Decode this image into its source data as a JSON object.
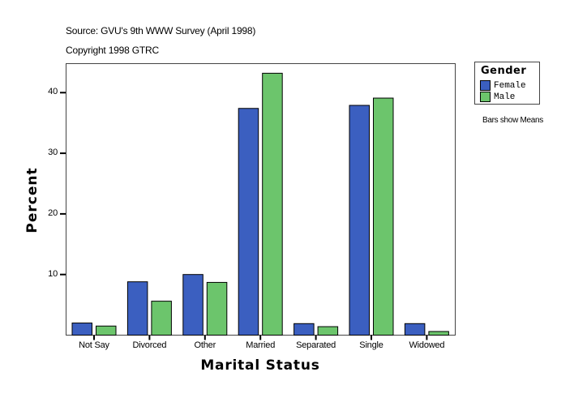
{
  "header": {
    "source": "Source: GVU's 9th WWW Survey (April 1998)",
    "copyright": "Copyright 1998 GTRC"
  },
  "legend": {
    "title": "Gender",
    "items": [
      {
        "label": "Female",
        "color": "#3b5fc0"
      },
      {
        "label": "Male",
        "color": "#6cc56c"
      }
    ]
  },
  "note": "Bars show Means",
  "chart_data": {
    "type": "bar",
    "title": "",
    "subtitle": "Source: GVU's 9th WWW Survey (April 1998) / Copyright 1998 GTRC",
    "xlabel": "Marital Status",
    "ylabel": "Percent",
    "categories": [
      "Not Say",
      "Divorced",
      "Other",
      "Married",
      "Separated",
      "Single",
      "Widowed"
    ],
    "series": [
      {
        "name": "Female",
        "color": "#3b5fc0",
        "values": [
          2.0,
          8.8,
          10.0,
          37.4,
          1.9,
          37.9,
          1.9
        ]
      },
      {
        "name": "Male",
        "color": "#6cc56c",
        "values": [
          1.5,
          5.6,
          8.7,
          43.2,
          1.4,
          39.1,
          0.6
        ]
      }
    ],
    "yticks": [
      10,
      20,
      30,
      40
    ],
    "ylim": [
      0,
      44.8
    ],
    "grid": false,
    "legend_position": "right",
    "annotation": "Bars show Means"
  }
}
